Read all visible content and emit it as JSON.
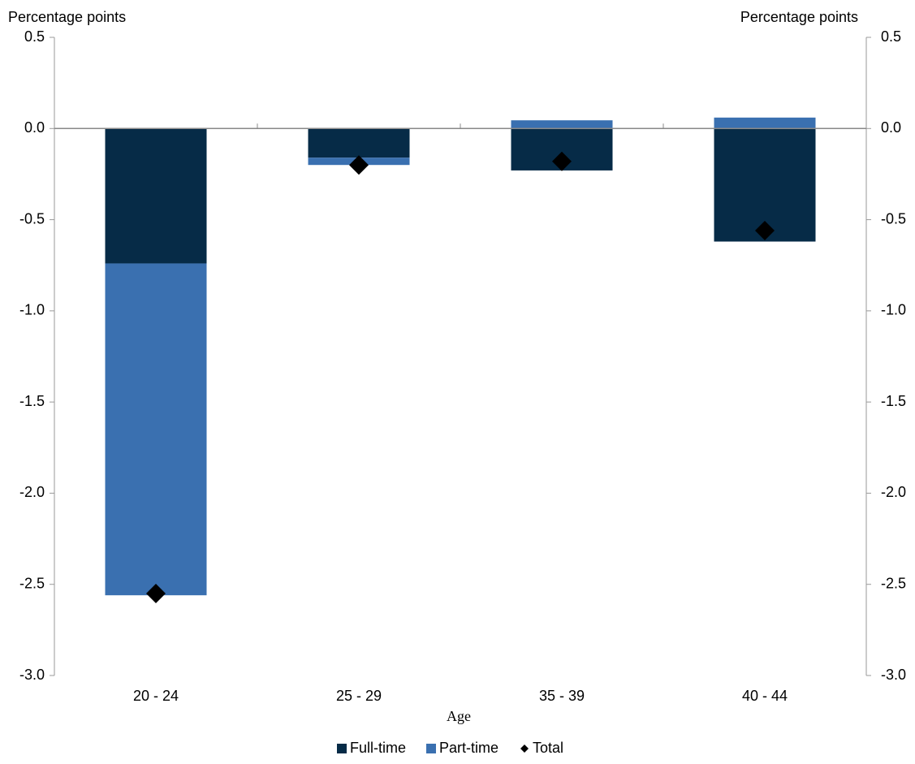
{
  "chart_data": {
    "type": "bar",
    "stacked": true,
    "y_label": "Percentage points",
    "y2_label": "Percentage points",
    "x_label": "Age",
    "categories": [
      "20 - 24",
      "25 - 29",
      "35 - 39",
      "40 - 44"
    ],
    "series": [
      {
        "name": "Full-time",
        "color": "#062b47",
        "values": [
          -0.74,
          -0.16,
          -0.23,
          -0.62
        ]
      },
      {
        "name": "Part-time",
        "color": "#3a70b0",
        "values": [
          -1.82,
          -0.04,
          0.045,
          0.06
        ]
      },
      {
        "name": "Total",
        "type": "scatter",
        "color": "#000000",
        "values": [
          -2.55,
          -0.2,
          -0.18,
          -0.56
        ]
      }
    ],
    "ylim": [
      -3.0,
      0.5
    ],
    "yticks": [
      0.5,
      {
        "value": 0,
        "label": "0.0"
      },
      -0.5,
      {
        "value": -1,
        "label": "-1.0"
      },
      -1.5,
      {
        "value": -2,
        "label": "-2.0"
      },
      -2.5,
      {
        "value": -3,
        "label": "-3.0"
      }
    ],
    "y2lim": [
      -3.0,
      0.5
    ],
    "y2ticks": [
      0.5,
      {
        "value": 0,
        "label": "0.0"
      },
      -0.5,
      {
        "value": -1,
        "label": "-1.0"
      },
      -1.5,
      {
        "value": -2,
        "label": "-2.0"
      },
      -2.5,
      {
        "value": -3,
        "label": "-3.0"
      }
    ],
    "legend": "bottom"
  }
}
